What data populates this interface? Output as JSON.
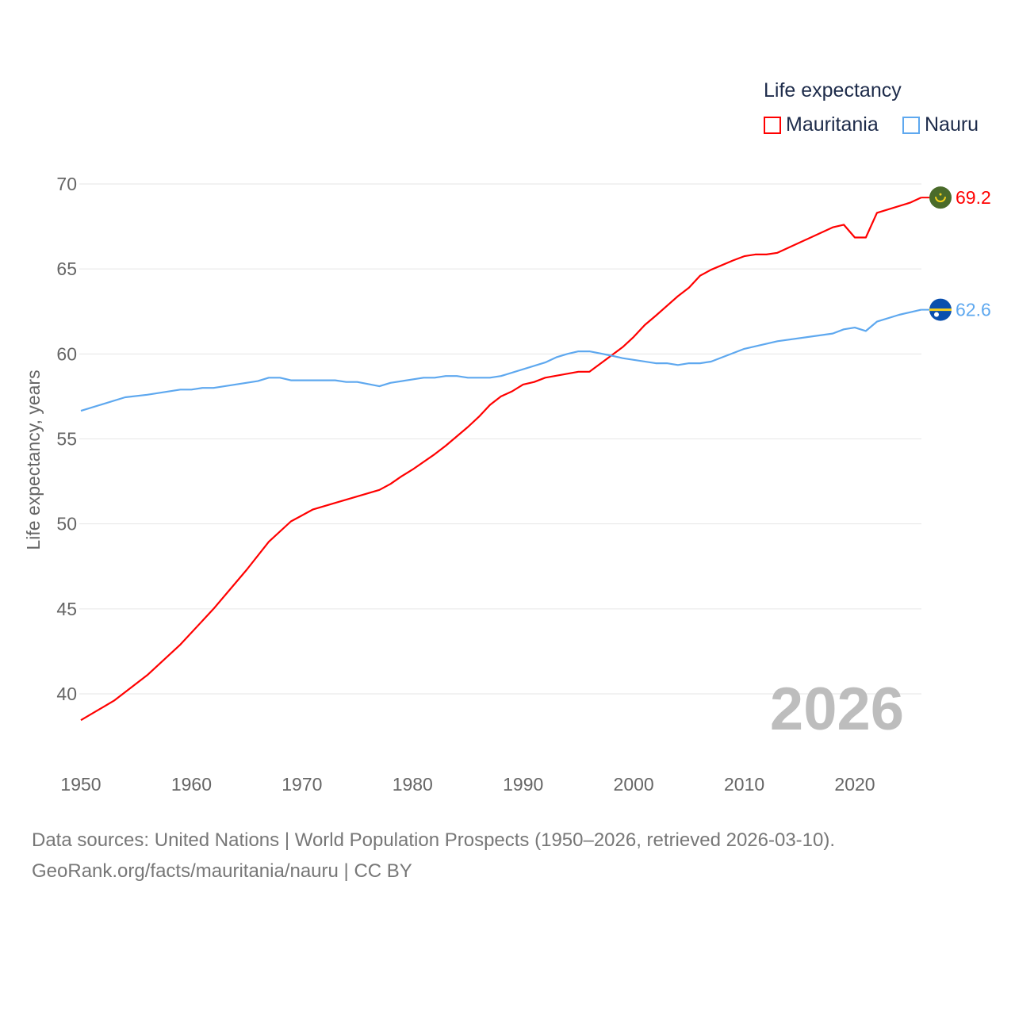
{
  "chart_data": {
    "type": "line",
    "title": "Life expectancy",
    "xlabel": "",
    "ylabel": "Life expectancy, years",
    "xlim": [
      1950,
      2026
    ],
    "ylim": [
      37.5,
      70.5
    ],
    "x_ticks": [
      "1950",
      "1960",
      "1970",
      "1980",
      "1990",
      "2000",
      "2010",
      "2020"
    ],
    "y_ticks": [
      "40",
      "45",
      "50",
      "55",
      "60",
      "65",
      "70"
    ],
    "grid": true,
    "legend_placement": "top-right",
    "current_year_label": "2026",
    "series": [
      {
        "name": "Mauritania",
        "color": "#ff0000",
        "end_label": "69.2",
        "flag_color": "#4a6b2a",
        "points": [
          [
            1950,
            38.45
          ],
          [
            1953,
            39.6
          ],
          [
            1956,
            41.1
          ],
          [
            1959,
            42.9
          ],
          [
            1962,
            45.0
          ],
          [
            1965,
            47.3
          ],
          [
            1967,
            48.95
          ],
          [
            1969,
            50.15
          ],
          [
            1971,
            50.85
          ],
          [
            1977,
            52.0
          ],
          [
            1978,
            52.35
          ],
          [
            1979,
            52.8
          ],
          [
            1980,
            53.2
          ],
          [
            1982,
            54.1
          ],
          [
            1983,
            54.6
          ],
          [
            1985,
            55.7
          ],
          [
            1986,
            56.3
          ],
          [
            1987,
            57.0
          ],
          [
            1988,
            57.5
          ],
          [
            1989,
            57.8
          ],
          [
            1990,
            58.2
          ],
          [
            1991,
            58.35
          ],
          [
            1992,
            58.6
          ],
          [
            1995,
            58.95
          ],
          [
            1996,
            58.95
          ],
          [
            1999,
            60.4
          ],
          [
            2000,
            61.0
          ],
          [
            2001,
            61.7
          ],
          [
            2002,
            62.25
          ],
          [
            2004,
            63.4
          ],
          [
            2005,
            63.9
          ],
          [
            2006,
            64.6
          ],
          [
            2007,
            64.95
          ],
          [
            2009,
            65.5
          ],
          [
            2010,
            65.75
          ],
          [
            2011,
            65.85
          ],
          [
            2012,
            65.85
          ],
          [
            2013,
            65.95
          ],
          [
            2018,
            67.45
          ],
          [
            2019,
            67.6
          ],
          [
            2020,
            66.85
          ],
          [
            2021,
            66.85
          ],
          [
            2022,
            68.3
          ],
          [
            2025,
            68.9
          ],
          [
            2026,
            69.2
          ]
        ]
      },
      {
        "name": "Nauru",
        "color": "#5ea8ef",
        "end_label": "62.6",
        "flag_color": "#0a4fae",
        "points": [
          [
            1950,
            56.65
          ],
          [
            1954,
            57.45
          ],
          [
            1956,
            57.6
          ],
          [
            1959,
            57.9
          ],
          [
            1960,
            57.9
          ],
          [
            1961,
            58.0
          ],
          [
            1962,
            58.0
          ],
          [
            1966,
            58.4
          ],
          [
            1967,
            58.6
          ],
          [
            1968,
            58.6
          ],
          [
            1969,
            58.45
          ],
          [
            1973,
            58.45
          ],
          [
            1974,
            58.35
          ],
          [
            1975,
            58.35
          ],
          [
            1977,
            58.1
          ],
          [
            1978,
            58.3
          ],
          [
            1981,
            58.6
          ],
          [
            1982,
            58.6
          ],
          [
            1983,
            58.7
          ],
          [
            1984,
            58.7
          ],
          [
            1985,
            58.6
          ],
          [
            1987,
            58.6
          ],
          [
            1988,
            58.7
          ],
          [
            1992,
            59.5
          ],
          [
            1993,
            59.8
          ],
          [
            1994,
            60.0
          ],
          [
            1995,
            60.15
          ],
          [
            1996,
            60.15
          ],
          [
            1998,
            59.9
          ],
          [
            1999,
            59.75
          ],
          [
            2002,
            59.45
          ],
          [
            2003,
            59.45
          ],
          [
            2004,
            59.35
          ],
          [
            2005,
            59.45
          ],
          [
            2006,
            59.45
          ],
          [
            2007,
            59.55
          ],
          [
            2010,
            60.3
          ],
          [
            2013,
            60.75
          ],
          [
            2018,
            61.2
          ],
          [
            2019,
            61.45
          ],
          [
            2020,
            61.55
          ],
          [
            2021,
            61.35
          ],
          [
            2022,
            61.9
          ],
          [
            2024,
            62.3
          ],
          [
            2025,
            62.45
          ],
          [
            2026,
            62.6
          ]
        ]
      }
    ]
  },
  "footer": {
    "sources": "Data sources: United Nations | World Population Prospects (1950–2026, retrieved 2026-03-10).",
    "attribution": "GeoRank.org/facts/mauritania/nauru | CC BY"
  }
}
